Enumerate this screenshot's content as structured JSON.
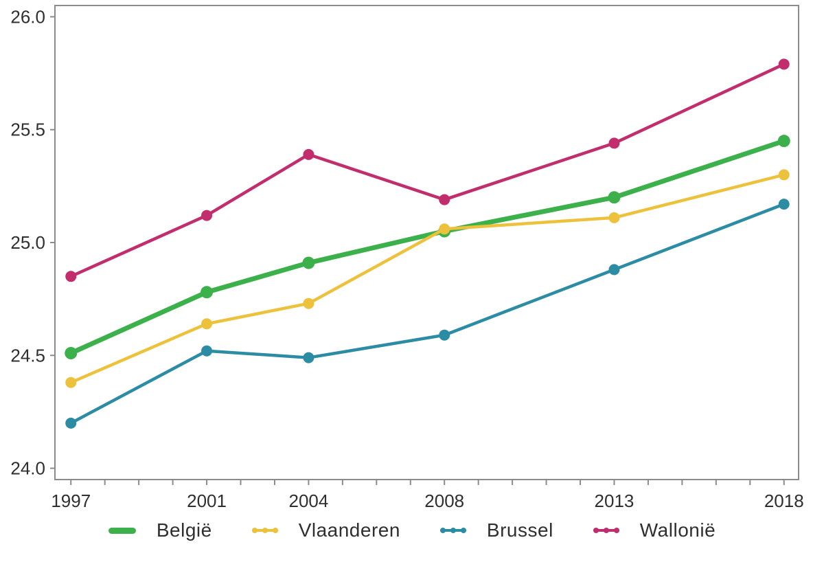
{
  "chart_data": {
    "type": "line",
    "x": [
      1997,
      2001,
      2004,
      2008,
      2013,
      2018
    ],
    "xtick_labels": [
      "1997",
      "2001",
      "2004",
      "2008",
      "2013",
      "2018"
    ],
    "x_minor_ticks_every_year": true,
    "xlim": [
      1996.53,
      2018.43
    ],
    "yticks": [
      24.0,
      24.5,
      25.0,
      25.5,
      26.0
    ],
    "ytick_labels": [
      "24.0",
      "24.5",
      "25.0",
      "25.5",
      "26.0"
    ],
    "ylim": [
      23.95,
      26.05
    ],
    "grid": false,
    "legend_position": "bottom",
    "title": "",
    "xlabel": "",
    "ylabel": "",
    "series": [
      {
        "name": "België",
        "color": "#3cb04b",
        "line_width": 7,
        "marker_radius": 9,
        "values": [
          24.51,
          24.78,
          24.91,
          25.05,
          25.2,
          25.45
        ]
      },
      {
        "name": "Vlaanderen",
        "color": "#ecc23d",
        "line_width": 4.5,
        "marker_radius": 8,
        "values": [
          24.38,
          24.64,
          24.73,
          25.06,
          25.11,
          25.3
        ]
      },
      {
        "name": "Brussel",
        "color": "#2b8ca4",
        "line_width": 4.5,
        "marker_radius": 8,
        "values": [
          24.2,
          24.52,
          24.49,
          24.59,
          24.88,
          25.17
        ]
      },
      {
        "name": "Wallonië",
        "color": "#c22d6d",
        "line_width": 4.5,
        "marker_radius": 8,
        "values": [
          24.85,
          25.12,
          25.39,
          25.19,
          25.44,
          25.79
        ]
      }
    ],
    "colors": {
      "plot_border": "#8b8b8b",
      "tick_mark": "#8b8b8b",
      "tick_label": "#2f2f2f",
      "background": "#ffffff"
    }
  }
}
